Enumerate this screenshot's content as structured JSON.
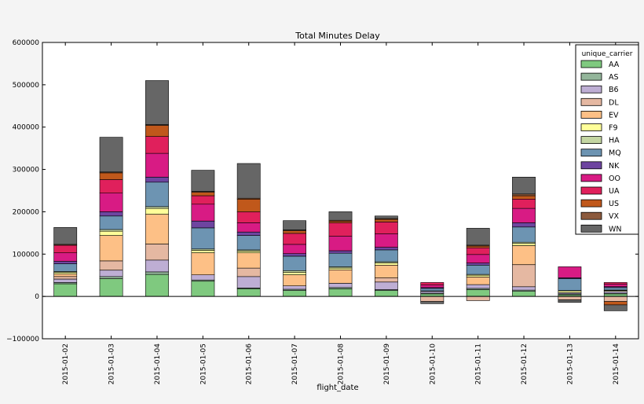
{
  "chart_data": {
    "type": "bar",
    "stacked": true,
    "title": "Total Minutes Delay",
    "xlabel": "flight_date",
    "ylabel": "",
    "ylim": [
      -100000,
      600000
    ],
    "yticks": [
      -100000,
      0,
      100000,
      200000,
      300000,
      400000,
      500000,
      600000
    ],
    "ytick_labels": [
      "−100000",
      "0",
      "100000",
      "200000",
      "300000",
      "400000",
      "500000",
      "600000"
    ],
    "grid": false,
    "legend": {
      "title": "unique_carrier",
      "position": "top-right"
    },
    "categories": [
      "2015-01-02",
      "2015-01-03",
      "2015-01-04",
      "2015-01-05",
      "2015-01-06",
      "2015-01-07",
      "2015-01-08",
      "2015-01-09",
      "2015-01-10",
      "2015-01-11",
      "2015-01-12",
      "2015-01-13",
      "2015-01-14"
    ],
    "series": [
      {
        "name": "AA",
        "color": "#7fc97f",
        "values": [
          30000,
          42000,
          52000,
          36000,
          18000,
          14000,
          18000,
          14000,
          6000,
          16000,
          12000,
          4000,
          6000
        ]
      },
      {
        "name": "AS",
        "color": "#93b59a",
        "values": [
          3000,
          5000,
          6000,
          3000,
          2000,
          3000,
          3000,
          2000,
          2000,
          3000,
          3000,
          2000,
          2000
        ]
      },
      {
        "name": "B6",
        "color": "#beaed4",
        "values": [
          8000,
          15000,
          28000,
          12000,
          27000,
          8000,
          10000,
          18000,
          4000,
          9000,
          8000,
          3000,
          4000
        ]
      },
      {
        "name": "DL",
        "color": "#e5b8a2",
        "values": [
          6000,
          22000,
          38000,
          0,
          20000,
          0,
          0,
          10000,
          -12000,
          -10000,
          52000,
          -8000,
          -12000
        ]
      },
      {
        "name": "EV",
        "color": "#fdc086",
        "values": [
          6000,
          60000,
          70000,
          52000,
          36000,
          26000,
          32000,
          30000,
          0,
          18000,
          45000,
          0,
          0
        ]
      },
      {
        "name": "F9",
        "color": "#ffff99",
        "values": [
          4000,
          10000,
          14000,
          6000,
          4000,
          6000,
          4000,
          5000,
          0,
          4000,
          5000,
          4000,
          2000
        ]
      },
      {
        "name": "HA",
        "color": "#c4d6a2",
        "values": [
          2000,
          4000,
          4000,
          3000,
          3000,
          4000,
          3000,
          3000,
          1000,
          2000,
          3000,
          1000,
          1000
        ]
      },
      {
        "name": "MQ",
        "color": "#6d94b2",
        "values": [
          18000,
          32000,
          58000,
          50000,
          34000,
          34000,
          32000,
          28000,
          6000,
          22000,
          36000,
          28000,
          6000
        ]
      },
      {
        "name": "NK",
        "color": "#6e45a0",
        "values": [
          6000,
          10000,
          12000,
          16000,
          8000,
          6000,
          6000,
          6000,
          2000,
          5000,
          10000,
          2000,
          2000
        ]
      },
      {
        "name": "OO",
        "color": "#d81b84",
        "values": [
          20000,
          44000,
          56000,
          40000,
          22000,
          22000,
          34000,
          32000,
          6000,
          20000,
          34000,
          26000,
          6000
        ]
      },
      {
        "name": "UA",
        "color": "#e0205c",
        "values": [
          18000,
          32000,
          40000,
          20000,
          26000,
          26000,
          32000,
          28000,
          6000,
          16000,
          22000,
          0,
          4000
        ]
      },
      {
        "name": "US",
        "color": "#c0581b",
        "values": [
          0,
          16000,
          26000,
          8000,
          30000,
          6000,
          4000,
          6000,
          0,
          4000,
          8000,
          0,
          -8000
        ]
      },
      {
        "name": "VX",
        "color": "#8c5a3d",
        "values": [
          2000,
          2000,
          2000,
          2000,
          2000,
          2000,
          2000,
          2000,
          0,
          2000,
          4000,
          0,
          0
        ]
      },
      {
        "name": "WN",
        "color": "#666666",
        "values": [
          40000,
          82000,
          104000,
          50000,
          82000,
          22000,
          20000,
          6000,
          -5000,
          40000,
          40000,
          -6000,
          -14000
        ]
      }
    ]
  }
}
